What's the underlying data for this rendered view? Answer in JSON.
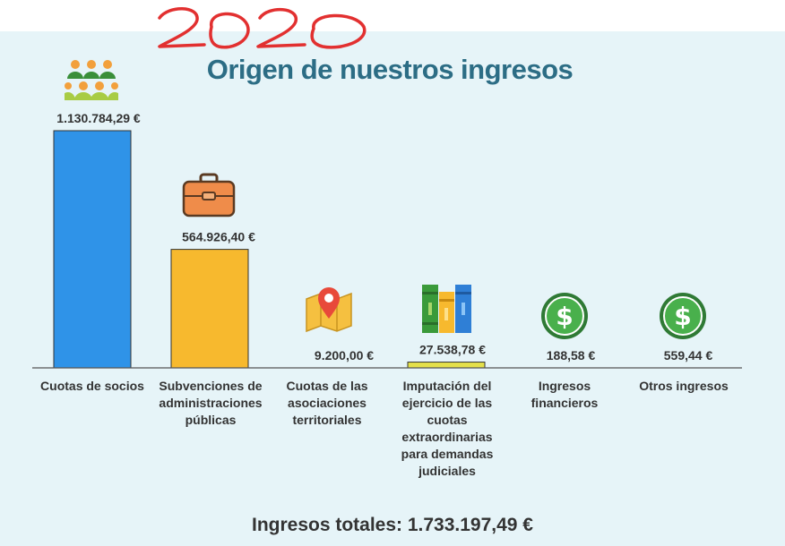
{
  "annotation": "2020",
  "chart_data": {
    "type": "bar",
    "title": "Origen de nuestros ingresos",
    "categories": [
      "Cuotas de socios",
      "Subvenciones de administraciones públicas",
      "Cuotas de las asociaciones territoriales",
      "Imputación del ejercicio de las cuotas extraordinarias para demandas judiciales",
      "Ingresos financieros",
      "Otros ingresos"
    ],
    "values": [
      1130784.29,
      564926.4,
      9200.0,
      27538.78,
      188.58,
      559.44
    ],
    "data_labels": [
      "1.130.784,29 €",
      "564.926,40 €",
      "9.200,00 €",
      "27.538,78 €",
      "188,58 €",
      "559,44 €"
    ],
    "bar_colors": [
      "#2f93e8",
      "#f7b92e",
      "#b04a33",
      "#e4e04a",
      "#3a8f3a",
      "#3a8f3a"
    ],
    "icons": [
      "people-icon",
      "briefcase-icon",
      "map-pin-icon",
      "books-icon",
      "dollar-coin-icon",
      "dollar-coin-icon"
    ],
    "xlabel": "",
    "ylabel": "",
    "grid": false,
    "legend": "none"
  },
  "total": "Ingresos totales: 1.733.197,49 €",
  "colors": {
    "background": "#e6f4f8",
    "title": "#2c6d85",
    "text": "#333333"
  }
}
